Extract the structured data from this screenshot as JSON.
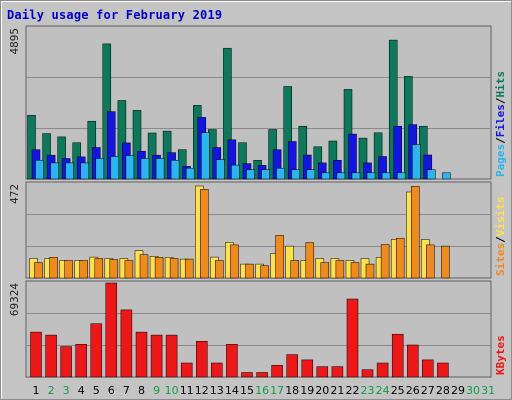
{
  "title": "Daily usage for February 2019",
  "colors": {
    "hits": "#0b7a5a",
    "files": "#1414e6",
    "pages": "#29b6f0",
    "visits": "#ffe24a",
    "sites": "#f08a1a",
    "kbytes": "#ee1616",
    "weekday_label": "#000000",
    "weekend_label": "#139a4a",
    "title": "#0000cc"
  },
  "right_labels": {
    "top": [
      {
        "text": "Pages",
        "color": "#29b6f0"
      },
      {
        "text": "/",
        "color": "#000000"
      },
      {
        "text": "Files",
        "color": "#1414e6"
      },
      {
        "text": "/",
        "color": "#000000"
      },
      {
        "text": "Hits",
        "color": "#0b7a5a"
      }
    ],
    "middle": [
      {
        "text": "Sites",
        "color": "#f08a1a"
      },
      {
        "text": "/",
        "color": "#000000"
      },
      {
        "text": "Visits",
        "color": "#ffe24a"
      }
    ],
    "bottom": [
      {
        "text": "KBytes",
        "color": "#ee1616"
      }
    ]
  },
  "chart_data": [
    {
      "type": "bar",
      "panel": "hits-files-pages",
      "y_max_label": "4895",
      "ylim": [
        0,
        4895
      ],
      "grid": true,
      "categories": [
        "1",
        "2",
        "3",
        "4",
        "5",
        "6",
        "7",
        "8",
        "9",
        "10",
        "11",
        "12",
        "13",
        "14",
        "15",
        "16",
        "17",
        "18",
        "19",
        "20",
        "21",
        "22",
        "23",
        "24",
        "25",
        "26",
        "27",
        "28",
        "29",
        "30",
        "31"
      ],
      "weekend_days": [
        "2",
        "3",
        "9",
        "10",
        "16",
        "17",
        "23",
        "24",
        "30",
        "31"
      ],
      "series": [
        {
          "name": "Hits",
          "color": "#0b7a5a",
          "values": [
            2065,
            1472,
            1365,
            1177,
            1874,
            4378,
            2546,
            2225,
            1491,
            1552,
            950,
            2385,
            1606,
            4239,
            1177,
            606,
            1606,
            3000,
            1713,
            1044,
            1231,
            2904,
            1325,
            1499,
            4503,
            3326,
            1713,
            null,
            null,
            null,
            null
          ]
        },
        {
          "name": "Files",
          "color": "#1414e6",
          "values": [
            950,
            771,
            664,
            715,
            1022,
            2185,
            1171,
            900,
            771,
            857,
            407,
            1998,
            1022,
            1270,
            500,
            440,
            950,
            1217,
            779,
            521,
            607,
            1457,
            521,
            729,
            1713,
            1762,
            779,
            null,
            null,
            null,
            null
          ]
        },
        {
          "name": "Pages",
          "color": "#29b6f0",
          "values": [
            607,
            521,
            521,
            521,
            664,
            729,
            757,
            664,
            664,
            607,
            350,
            1500,
            630,
            450,
            300,
            300,
            350,
            300,
            300,
            200,
            200,
            200,
            200,
            200,
            200,
            1111,
            300,
            200,
            null,
            null,
            null
          ]
        }
      ]
    },
    {
      "type": "bar",
      "panel": "visits-sites",
      "y_max_label": "472",
      "ylim": [
        0,
        472
      ],
      "grid": true,
      "categories": [
        "1",
        "2",
        "3",
        "4",
        "5",
        "6",
        "7",
        "8",
        "9",
        "10",
        "11",
        "12",
        "13",
        "14",
        "15",
        "16",
        "17",
        "18",
        "19",
        "20",
        "21",
        "22",
        "23",
        "24",
        "25",
        "26",
        "27",
        "28",
        "29",
        "30",
        "31"
      ],
      "series": [
        {
          "name": "Visits",
          "color": "#ffe24a",
          "values": [
            98,
            98,
            88,
            88,
            105,
            98,
            98,
            137,
            109,
            104,
            95,
            462,
            105,
            179,
            70,
            70,
            123,
            160,
            88,
            98,
            98,
            88,
            98,
            104,
            193,
            432,
            193,
            null,
            null,
            null,
            null
          ]
        },
        {
          "name": "Sites",
          "color": "#f08a1a",
          "values": [
            78,
            104,
            88,
            88,
            98,
            93,
            88,
            117,
            104,
            98,
            95,
            445,
            88,
            166,
            70,
            62,
            214,
            88,
            178,
            78,
            88,
            78,
            70,
            168,
            200,
            460,
            166,
            160,
            null,
            null,
            null
          ]
        }
      ]
    },
    {
      "type": "bar",
      "panel": "kbytes",
      "y_max_label": "69324",
      "ylim": [
        0,
        69324
      ],
      "grid": true,
      "categories": [
        "1",
        "2",
        "3",
        "4",
        "5",
        "6",
        "7",
        "8",
        "9",
        "10",
        "11",
        "12",
        "13",
        "14",
        "15",
        "16",
        "17",
        "18",
        "19",
        "20",
        "21",
        "22",
        "23",
        "24",
        "25",
        "26",
        "27",
        "28",
        "29",
        "30",
        "31"
      ],
      "series": [
        {
          "name": "KBytes",
          "color": "#ee1616",
          "values": [
            33150,
            30900,
            22400,
            24100,
            39300,
            69324,
            49500,
            33150,
            30900,
            30900,
            10300,
            26300,
            10300,
            24100,
            3300,
            3300,
            8600,
            16500,
            12600,
            7700,
            7700,
            57500,
            5400,
            10300,
            31600,
            23600,
            12600,
            10300,
            null,
            null,
            null
          ]
        }
      ]
    }
  ]
}
